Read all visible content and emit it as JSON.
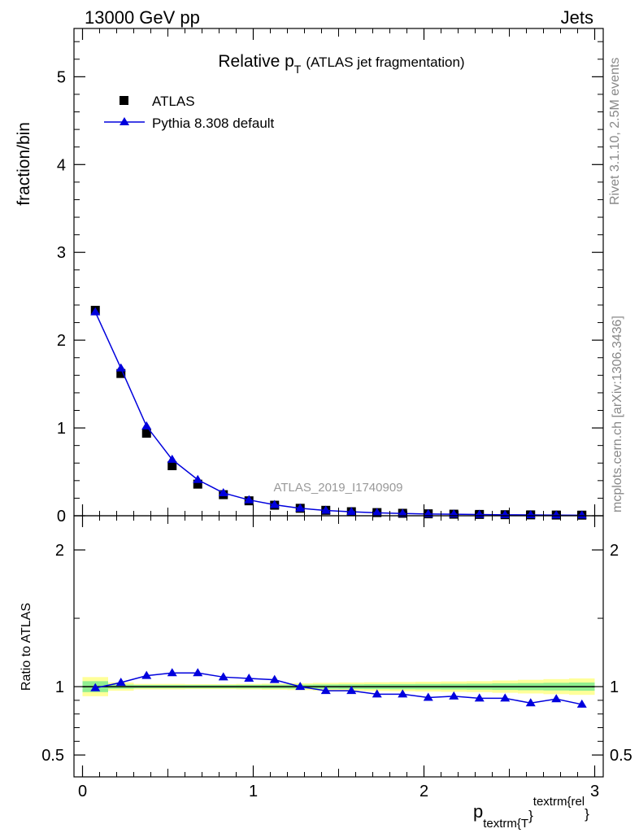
{
  "header": {
    "left": "13000 GeV pp",
    "right": "Jets"
  },
  "side_labels": {
    "rivet": "Rivet 3.1.10,  2.5M events",
    "mcplots": "mcplots.cern.ch [arXiv:1306.3436]"
  },
  "chart_data": [
    {
      "type": "scatter",
      "title": "Relative p",
      "title_subscript": "T",
      "title_suffix": "(ATLAS jet fragmentation)",
      "watermark": "ATLAS_2019_I1740909",
      "ylabel": "fraction/bin",
      "xlim": [
        -0.05,
        3.05
      ],
      "ylim": [
        0,
        5.55
      ],
      "yticks": [
        0,
        1,
        2,
        3,
        4,
        5
      ],
      "legend_position": "top-left",
      "x": [
        0.075,
        0.225,
        0.375,
        0.525,
        0.675,
        0.825,
        0.975,
        1.125,
        1.275,
        1.425,
        1.575,
        1.725,
        1.875,
        2.025,
        2.175,
        2.325,
        2.475,
        2.625,
        2.775,
        2.925
      ],
      "series": [
        {
          "name": "ATLAS",
          "marker": "square",
          "color": "#000000",
          "values": [
            2.34,
            1.62,
            0.94,
            0.57,
            0.36,
            0.24,
            0.17,
            0.12,
            0.085,
            0.062,
            0.046,
            0.036,
            0.028,
            0.022,
            0.018,
            0.015,
            0.012,
            0.01,
            0.008,
            0.007
          ]
        },
        {
          "name": "Pythia 8.308 default",
          "marker": "triangle",
          "color": "#0000dd",
          "values": [
            2.32,
            1.68,
            1.02,
            0.64,
            0.41,
            0.26,
            0.18,
            0.125,
            0.085,
            0.06,
            0.045,
            0.034,
            0.026,
            0.02,
            0.017,
            0.014,
            0.011,
            0.009,
            0.007,
            0.006
          ]
        }
      ]
    },
    {
      "type": "line",
      "ylabel": "Ratio to ATLAS",
      "xlabel_main": "p",
      "xlabel_sub": "textrm{T",
      "xlabel_close": "}",
      "xlabel_sup": "textrm{rel",
      "xlabel_close2": "}",
      "xlim": [
        -0.05,
        3.05
      ],
      "ylim": [
        0.34,
        2.25
      ],
      "yticks": [
        0.5,
        1,
        2
      ],
      "ytick_labels": [
        "0.5",
        "1",
        "2"
      ],
      "xticks": [
        0,
        1,
        2,
        3
      ],
      "xtick_labels": [
        "0",
        "1",
        "2",
        "3"
      ],
      "reference": 1,
      "band_edges": [
        0,
        0.15,
        0.3,
        0.45,
        0.6,
        0.75,
        0.9,
        1.05,
        1.2,
        1.35,
        1.5,
        1.65,
        1.8,
        1.95,
        2.1,
        2.25,
        2.4,
        2.55,
        2.7,
        2.85,
        3.0
      ],
      "band_inner": [
        0.04,
        0.015,
        0.012,
        0.012,
        0.012,
        0.012,
        0.013,
        0.014,
        0.015,
        0.016,
        0.017,
        0.018,
        0.019,
        0.02,
        0.021,
        0.022,
        0.024,
        0.026,
        0.028,
        0.03
      ],
      "band_outer": [
        0.07,
        0.03,
        0.02,
        0.02,
        0.018,
        0.018,
        0.02,
        0.022,
        0.025,
        0.028,
        0.03,
        0.032,
        0.034,
        0.036,
        0.038,
        0.04,
        0.045,
        0.05,
        0.055,
        0.06
      ],
      "band_inner_color": "#90ee90",
      "band_outer_color": "#ffff99",
      "series": [
        {
          "name": "Pythia 8.308 default",
          "color": "#0000dd",
          "x": [
            0.075,
            0.225,
            0.375,
            0.525,
            0.675,
            0.825,
            0.975,
            1.125,
            1.275,
            1.425,
            1.575,
            1.725,
            1.875,
            2.025,
            2.175,
            2.325,
            2.475,
            2.625,
            2.775,
            2.925
          ],
          "values": [
            0.99,
            1.03,
            1.08,
            1.1,
            1.1,
            1.07,
            1.06,
            1.05,
            1.0,
            0.97,
            0.97,
            0.945,
            0.945,
            0.92,
            0.93,
            0.915,
            0.915,
            0.88,
            0.91,
            0.87
          ],
          "errors": [
            0.005,
            0.005,
            0.005,
            0.005,
            0.005,
            0.006,
            0.006,
            0.007,
            0.008,
            0.009,
            0.01,
            0.011,
            0.012,
            0.013,
            0.014,
            0.015,
            0.016,
            0.018,
            0.02,
            0.022
          ]
        }
      ]
    }
  ]
}
